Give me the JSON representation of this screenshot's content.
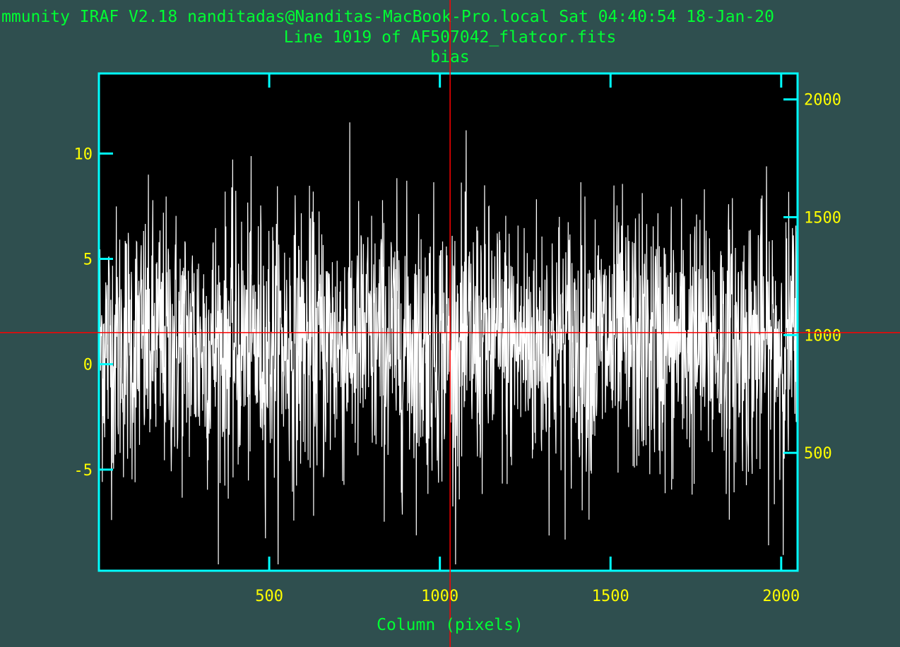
{
  "header": {
    "system_line": "mmunity IRAF V2.18 nanditadas@Nanditas-MacBook-Pro.local Sat 04:40:54 18-Jan-20",
    "line_info": "Line 1019 of AF507042_flatcor.fits",
    "plot_title": "bias"
  },
  "colors": {
    "background": "#2f4f4f",
    "frame": "#00ffff",
    "plot_bg": "#000000",
    "data": "#ffffff",
    "tick_labels": "#ffff00",
    "titles": "#00ff33",
    "cursor": "#ff0000"
  },
  "chart_data": {
    "type": "line",
    "title": "bias",
    "xlabel": "Column (pixels)",
    "ylabel": "",
    "xlim": [
      1,
      2048
    ],
    "ylim": [
      -9.8,
      13.8
    ],
    "x_ticks": [
      500,
      1000,
      1500,
      2000
    ],
    "x_tick_labels": [
      "500",
      "1000",
      "1500",
      "2000"
    ],
    "y_ticks": [
      -5,
      0,
      5,
      10
    ],
    "y_tick_labels": [
      "-5",
      "0",
      "5",
      "10"
    ],
    "right_axis": {
      "label": "",
      "lim": [
        0,
        2110
      ],
      "ticks": [
        500,
        1000,
        1500,
        2000
      ],
      "tick_labels": [
        "500",
        "1000",
        "1500",
        "2000"
      ]
    },
    "cursor": {
      "x": 1030,
      "y": 1.5
    },
    "series": [
      {
        "description_values": "noise around ~1, range approx -9.5 to 13.5",
        "values": []
      }
    ]
  }
}
